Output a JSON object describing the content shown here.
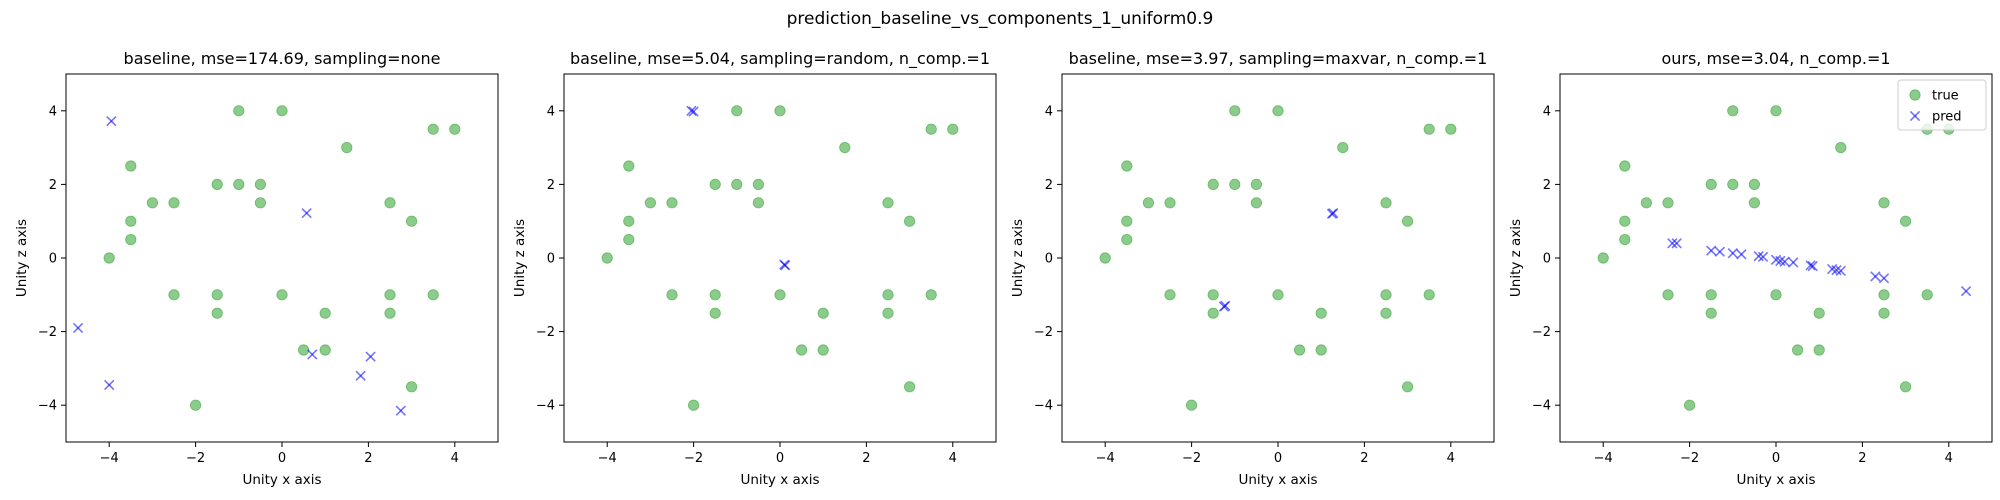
{
  "figure": {
    "suptitle": "prediction_baseline_vs_components_1_uniform0.9"
  },
  "colors": {
    "true": "#2ca02c",
    "pred": "#0000ff"
  },
  "chart_data": [
    {
      "type": "scatter",
      "title": "baseline, mse=174.69, sampling=none",
      "xlabel": "Unity x axis",
      "ylabel": "Unity z axis",
      "xlim": [
        -5,
        5
      ],
      "ylim": [
        -5,
        5
      ],
      "xticks": [
        -4,
        -2,
        0,
        2,
        4
      ],
      "yticks": [
        -4,
        -2,
        0,
        2,
        4
      ],
      "legend": null,
      "series": [
        {
          "key": "true",
          "marker": "circle",
          "points": [
            [
              -4,
              0
            ],
            [
              -3.5,
              2.5
            ],
            [
              -3.5,
              1
            ],
            [
              -3.5,
              0.5
            ],
            [
              -3,
              1.5
            ],
            [
              -2.5,
              1.5
            ],
            [
              -2.5,
              -1
            ],
            [
              -2,
              -4
            ],
            [
              -1.5,
              2
            ],
            [
              -1.5,
              -1
            ],
            [
              -1.5,
              -1.5
            ],
            [
              -1,
              4
            ],
            [
              -1,
              2
            ],
            [
              -0.5,
              2
            ],
            [
              -0.5,
              1.5
            ],
            [
              0,
              4
            ],
            [
              0,
              -1
            ],
            [
              0.5,
              -2.5
            ],
            [
              1,
              -1.5
            ],
            [
              1,
              -2.5
            ],
            [
              1.5,
              3
            ],
            [
              2.5,
              1.5
            ],
            [
              2.5,
              -1
            ],
            [
              2.5,
              -1.5
            ],
            [
              3,
              1
            ],
            [
              3,
              -3.5
            ],
            [
              3.5,
              3.5
            ],
            [
              3.5,
              -1
            ],
            [
              4,
              3.5
            ]
          ]
        },
        {
          "key": "pred",
          "marker": "x",
          "points": [
            [
              -3.95,
              3.72
            ],
            [
              -4.72,
              -1.9
            ],
            [
              -4.0,
              -3.45
            ],
            [
              0.57,
              1.22
            ],
            [
              0.7,
              -2.62
            ],
            [
              2.05,
              -2.68
            ],
            [
              1.82,
              -3.2
            ],
            [
              2.75,
              -4.15
            ]
          ]
        }
      ]
    },
    {
      "type": "scatter",
      "title": "baseline, mse=5.04, sampling=random, n_comp.=1",
      "xlabel": "Unity x axis",
      "ylabel": "Unity z axis",
      "xlim": [
        -5,
        5
      ],
      "ylim": [
        -5,
        5
      ],
      "xticks": [
        -4,
        -2,
        0,
        2,
        4
      ],
      "yticks": [
        -4,
        -2,
        0,
        2,
        4
      ],
      "legend": null,
      "series": [
        {
          "key": "true",
          "marker": "circle",
          "points": [
            [
              -4,
              0
            ],
            [
              -3.5,
              2.5
            ],
            [
              -3.5,
              1
            ],
            [
              -3.5,
              0.5
            ],
            [
              -3,
              1.5
            ],
            [
              -2.5,
              1.5
            ],
            [
              -2.5,
              -1
            ],
            [
              -2,
              -4
            ],
            [
              -1.5,
              2
            ],
            [
              -1.5,
              -1
            ],
            [
              -1.5,
              -1.5
            ],
            [
              -1,
              4
            ],
            [
              -1,
              2
            ],
            [
              -0.5,
              2
            ],
            [
              -0.5,
              1.5
            ],
            [
              0,
              4
            ],
            [
              0,
              -1
            ],
            [
              0.5,
              -2.5
            ],
            [
              1,
              -1.5
            ],
            [
              1,
              -2.5
            ],
            [
              1.5,
              3
            ],
            [
              2.5,
              1.5
            ],
            [
              2.5,
              -1
            ],
            [
              2.5,
              -1.5
            ],
            [
              3,
              1
            ],
            [
              3,
              -3.5
            ],
            [
              3.5,
              3.5
            ],
            [
              3.5,
              -1
            ],
            [
              4,
              3.5
            ]
          ]
        },
        {
          "key": "pred",
          "marker": "x",
          "points": [
            [
              -2.05,
              4.0
            ],
            [
              -2.0,
              3.98
            ],
            [
              0.1,
              -0.18
            ],
            [
              0.12,
              -0.2
            ]
          ]
        }
      ]
    },
    {
      "type": "scatter",
      "title": "baseline, mse=3.97, sampling=maxvar, n_comp.=1",
      "xlabel": "Unity x axis",
      "ylabel": "Unity z axis",
      "xlim": [
        -5,
        5
      ],
      "ylim": [
        -5,
        5
      ],
      "xticks": [
        -4,
        -2,
        0,
        2,
        4
      ],
      "yticks": [
        -4,
        -2,
        0,
        2,
        4
      ],
      "legend": null,
      "series": [
        {
          "key": "true",
          "marker": "circle",
          "points": [
            [
              -4,
              0
            ],
            [
              -3.5,
              2.5
            ],
            [
              -3.5,
              1
            ],
            [
              -3.5,
              0.5
            ],
            [
              -3,
              1.5
            ],
            [
              -2.5,
              1.5
            ],
            [
              -2.5,
              -1
            ],
            [
              -2,
              -4
            ],
            [
              -1.5,
              2
            ],
            [
              -1.5,
              -1
            ],
            [
              -1.5,
              -1.5
            ],
            [
              -1,
              4
            ],
            [
              -1,
              2
            ],
            [
              -0.5,
              2
            ],
            [
              -0.5,
              1.5
            ],
            [
              0,
              4
            ],
            [
              0,
              -1
            ],
            [
              0.5,
              -2.5
            ],
            [
              1,
              -1.5
            ],
            [
              1,
              -2.5
            ],
            [
              1.5,
              3
            ],
            [
              2.5,
              1.5
            ],
            [
              2.5,
              -1
            ],
            [
              2.5,
              -1.5
            ],
            [
              3,
              1
            ],
            [
              3,
              -3.5
            ],
            [
              3.5,
              3.5
            ],
            [
              3.5,
              -1
            ],
            [
              4,
              3.5
            ]
          ]
        },
        {
          "key": "pred",
          "marker": "x",
          "points": [
            [
              1.25,
              1.2
            ],
            [
              1.28,
              1.22
            ],
            [
              -1.25,
              -1.32
            ],
            [
              -1.22,
              -1.3
            ]
          ]
        }
      ]
    },
    {
      "type": "scatter",
      "title": "ours, mse=3.04, n_comp.=1",
      "xlabel": "Unity x axis",
      "ylabel": "Unity z axis",
      "xlim": [
        -5,
        5
      ],
      "ylim": [
        -5,
        5
      ],
      "xticks": [
        -4,
        -2,
        0,
        2,
        4
      ],
      "yticks": [
        -4,
        -2,
        0,
        2,
        4
      ],
      "legend": {
        "placement": "upper right",
        "entries": [
          {
            "key": "true",
            "label": "true"
          },
          {
            "key": "pred",
            "label": "pred"
          }
        ]
      },
      "series": [
        {
          "key": "true",
          "marker": "circle",
          "points": [
            [
              -4,
              0
            ],
            [
              -3.5,
              2.5
            ],
            [
              -3.5,
              1
            ],
            [
              -3.5,
              0.5
            ],
            [
              -3,
              1.5
            ],
            [
              -2.5,
              1.5
            ],
            [
              -2.5,
              -1
            ],
            [
              -2,
              -4
            ],
            [
              -1.5,
              2
            ],
            [
              -1.5,
              -1
            ],
            [
              -1.5,
              -1.5
            ],
            [
              -1,
              4
            ],
            [
              -1,
              2
            ],
            [
              -0.5,
              2
            ],
            [
              -0.5,
              1.5
            ],
            [
              0,
              4
            ],
            [
              0,
              -1
            ],
            [
              0.5,
              -2.5
            ],
            [
              1,
              -1.5
            ],
            [
              1,
              -2.5
            ],
            [
              1.5,
              3
            ],
            [
              2.5,
              1.5
            ],
            [
              2.5,
              -1
            ],
            [
              2.5,
              -1.5
            ],
            [
              3,
              1
            ],
            [
              3,
              -3.5
            ],
            [
              3.5,
              3.5
            ],
            [
              3.5,
              -1
            ],
            [
              4,
              3.5
            ]
          ]
        },
        {
          "key": "pred",
          "marker": "x",
          "points": [
            [
              -2.4,
              0.4
            ],
            [
              -2.3,
              0.4
            ],
            [
              -1.5,
              0.2
            ],
            [
              -1.3,
              0.17
            ],
            [
              -1.0,
              0.13
            ],
            [
              -0.8,
              0.1
            ],
            [
              -0.4,
              0.05
            ],
            [
              -0.3,
              0.03
            ],
            [
              0.0,
              -0.05
            ],
            [
              0.1,
              -0.08
            ],
            [
              0.2,
              -0.1
            ],
            [
              0.4,
              -0.12
            ],
            [
              0.8,
              -0.2
            ],
            [
              0.85,
              -0.22
            ],
            [
              1.3,
              -0.3
            ],
            [
              1.4,
              -0.33
            ],
            [
              1.5,
              -0.35
            ],
            [
              2.3,
              -0.5
            ],
            [
              2.5,
              -0.55
            ],
            [
              4.4,
              -0.9
            ]
          ]
        }
      ]
    }
  ]
}
